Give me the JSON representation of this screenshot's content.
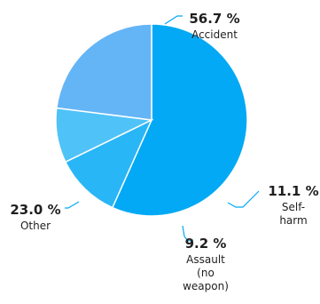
{
  "chart_data": {
    "type": "pie",
    "slices": [
      {
        "label_lines": [
          "Accident"
        ],
        "pct_text": "56.7 %",
        "value": 56.7,
        "color": "#03a9f4"
      },
      {
        "label_lines": [
          "Self-",
          "harm"
        ],
        "pct_text": "11.1 %",
        "value": 11.1,
        "color": "#29b6f6"
      },
      {
        "label_lines": [
          "Assault",
          "(no",
          "weapon)"
        ],
        "pct_text": "9.2 %",
        "value": 9.2,
        "color": "#4fc3f7"
      },
      {
        "label_lines": [
          "Other"
        ],
        "pct_text": "23.0 %",
        "value": 23.0,
        "color": "#64b5f6"
      }
    ],
    "start_angle_deg": 0,
    "direction": "clockwise",
    "leader_line_color": "#03a9f4",
    "slice_border_color": "#ffffff"
  }
}
